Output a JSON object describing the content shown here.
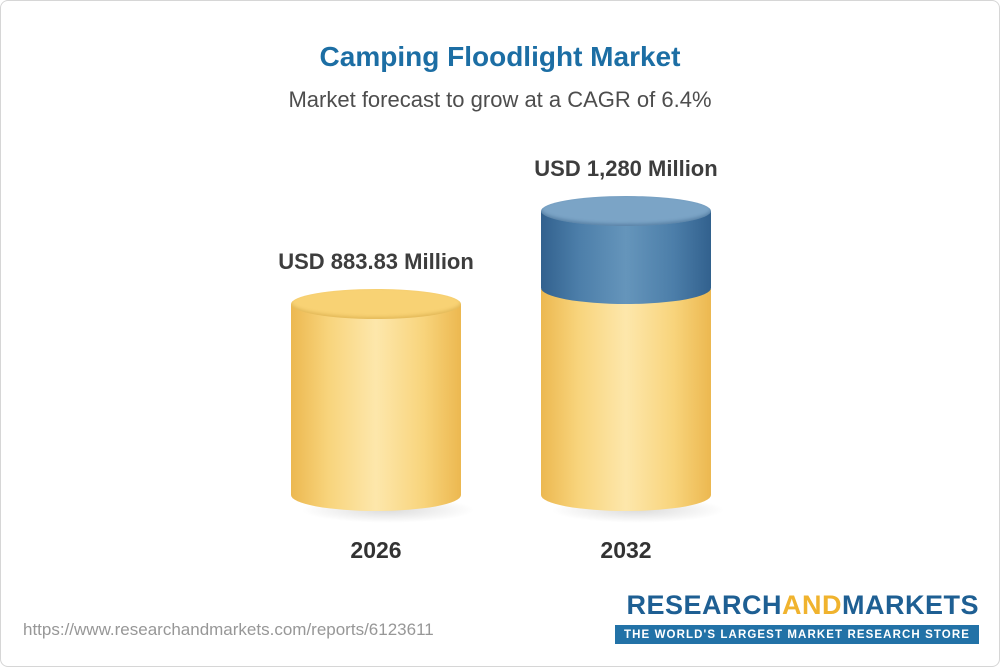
{
  "title": "Camping Floodlight Market",
  "subtitle": "Market forecast to grow at a CAGR of 6.4%",
  "footer": {
    "url": "https://www.researchandmarkets.com/reports/6123611",
    "logo": {
      "part1": "RESEARCH",
      "part2": "AND",
      "part3": "MARKETS",
      "tagline": "THE WORLD'S LARGEST MARKET RESEARCH STORE"
    }
  },
  "colors": {
    "title_blue": "#1c6ea4",
    "bar_yellow": "#f8d47c",
    "bar_blue": "#4c7ea9",
    "logo_blue": "#1e5f93",
    "logo_gold": "#f0b32e",
    "tagline_bar_blue": "#2272a7"
  },
  "chart_data": {
    "type": "bar",
    "style": "3d-cylinder",
    "title": "Camping Floodlight Market",
    "subtitle": "Market forecast to grow at a CAGR of 6.4%",
    "cagr": "6.4%",
    "unit": "USD Million",
    "categories": [
      "2026",
      "2032"
    ],
    "values": [
      883.83,
      1280
    ],
    "value_labels": [
      "USD 883.83 Million",
      "USD 1,280 Million"
    ],
    "series_note": "Single series; 2032 bar shows growth increment over 2026 as blue top segment",
    "baseline_color": "#f8d47c",
    "growth_segment_color": "#4c7ea9",
    "xlabel": "",
    "ylabel": "",
    "legend": "none",
    "grid": "off"
  }
}
